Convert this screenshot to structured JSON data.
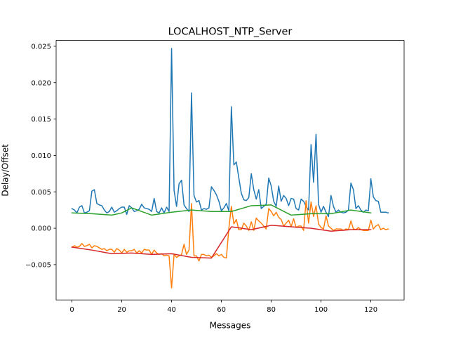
{
  "chart_data": {
    "type": "line",
    "title": "LOCALHOST_NTP_Server",
    "xlabel": "Messages",
    "ylabel": "Delay/Offset",
    "xlim": [
      -6.35,
      133.35
    ],
    "ylim": [
      -0.00985,
      0.0258
    ],
    "x_ticks": [
      0,
      20,
      40,
      60,
      80,
      100,
      120
    ],
    "x_tick_labels": [
      "0",
      "20",
      "40",
      "60",
      "80",
      "100",
      "120"
    ],
    "y_ticks": [
      -0.005,
      0.0,
      0.005,
      0.01,
      0.015,
      0.02,
      0.025
    ],
    "y_tick_labels": [
      "−0.005",
      "0.000",
      "0.005",
      "0.010",
      "0.015",
      "0.020",
      "0.025"
    ],
    "grid": false,
    "legend": null,
    "series": [
      {
        "color": "#1f77b4",
        "x": [
          0,
          1,
          2,
          3,
          4,
          5,
          6,
          7,
          8,
          9,
          10,
          11,
          12,
          13,
          14,
          15,
          16,
          17,
          18,
          19,
          20,
          21,
          22,
          23,
          24,
          25,
          26,
          27,
          28,
          29,
          30,
          31,
          32,
          33,
          34,
          35,
          36,
          37,
          38,
          39,
          40,
          41,
          42,
          43,
          44,
          45,
          46,
          47,
          48,
          49,
          50,
          51,
          52,
          53,
          54,
          55,
          56,
          57,
          58,
          59,
          60,
          61,
          62,
          63,
          64,
          65,
          66,
          67,
          68,
          69,
          70,
          71,
          72,
          73,
          74,
          75,
          76,
          77,
          78,
          79,
          80,
          81,
          82,
          83,
          84,
          85,
          86,
          87,
          88,
          89,
          90,
          91,
          92,
          93,
          94,
          95,
          96,
          97,
          98,
          99,
          100,
          101,
          102,
          103,
          104,
          105,
          106,
          107,
          108,
          109,
          110,
          111,
          112,
          113,
          114,
          115,
          116,
          117,
          118,
          119,
          120,
          121,
          122,
          123,
          124,
          125,
          126,
          127
        ],
        "y": [
          0.0027,
          0.0025,
          0.0021,
          0.0029,
          0.0031,
          0.0021,
          0.0022,
          0.0024,
          0.0051,
          0.0053,
          0.0034,
          0.0032,
          0.0031,
          0.0025,
          0.0021,
          0.0023,
          0.0029,
          0.0022,
          0.0024,
          0.0027,
          0.0029,
          0.0029,
          0.0019,
          0.0031,
          0.0028,
          0.0023,
          0.0024,
          0.0026,
          0.0033,
          0.0028,
          0.0027,
          0.0026,
          0.0023,
          0.0041,
          0.0023,
          0.0021,
          0.0028,
          0.0021,
          0.0029,
          0.0023,
          0.0247,
          0.0052,
          0.003,
          0.0061,
          0.0066,
          0.0032,
          0.0027,
          0.0023,
          0.0186,
          0.0045,
          0.0036,
          0.0038,
          0.0025,
          0.0027,
          0.0026,
          0.0028,
          0.0057,
          0.0052,
          0.0046,
          0.0037,
          0.0024,
          0.0028,
          0.0034,
          0.0024,
          0.0167,
          0.0087,
          0.0091,
          0.0069,
          0.0048,
          0.0039,
          0.0038,
          0.0042,
          0.0075,
          0.0053,
          0.004,
          0.0053,
          0.0027,
          0.003,
          0.0033,
          0.0069,
          0.0058,
          0.0037,
          0.003,
          0.0058,
          0.0037,
          0.0045,
          0.0041,
          0.0031,
          0.0041,
          0.004,
          0.0027,
          0.0025,
          0.004,
          0.0037,
          0.003,
          0.0025,
          0.0115,
          0.0063,
          0.0129,
          0.0033,
          0.0022,
          0.003,
          0.0022,
          0.0016,
          0.0045,
          0.003,
          0.0022,
          0.0025,
          0.0022,
          0.0021,
          0.0022,
          0.0025,
          0.0062,
          0.0053,
          0.0027,
          0.0031,
          0.0025,
          0.0022,
          0.0025,
          0.0024,
          0.0068,
          0.0043,
          0.0038,
          0.0037,
          0.0022,
          0.0022,
          0.0022,
          0.0021
        ]
      },
      {
        "color": "#ff7f0e",
        "x": [
          0,
          1,
          2,
          3,
          4,
          5,
          6,
          7,
          8,
          9,
          10,
          11,
          12,
          13,
          14,
          15,
          16,
          17,
          18,
          19,
          20,
          21,
          22,
          23,
          24,
          25,
          26,
          27,
          28,
          29,
          30,
          31,
          32,
          33,
          34,
          35,
          36,
          37,
          38,
          39,
          40,
          41,
          42,
          43,
          44,
          45,
          46,
          47,
          48,
          49,
          50,
          51,
          52,
          53,
          54,
          55,
          56,
          57,
          58,
          59,
          60,
          61,
          62,
          63,
          64,
          65,
          66,
          67,
          68,
          69,
          70,
          71,
          72,
          73,
          74,
          75,
          76,
          77,
          78,
          79,
          80,
          81,
          82,
          83,
          84,
          85,
          86,
          87,
          88,
          89,
          90,
          91,
          92,
          93,
          94,
          95,
          96,
          97,
          98,
          99,
          100,
          101,
          102,
          103,
          104,
          105,
          106,
          107,
          108,
          109,
          110,
          111,
          112,
          113,
          114,
          115,
          116,
          117,
          118,
          119,
          120,
          121,
          122,
          123,
          124,
          125,
          126,
          127
        ],
        "y": [
          -0.0026,
          -0.0024,
          -0.0026,
          -0.0025,
          -0.0021,
          -0.0025,
          -0.0024,
          -0.0022,
          -0.0027,
          -0.0024,
          -0.0025,
          -0.0027,
          -0.0029,
          -0.0028,
          -0.0031,
          -0.0029,
          -0.0029,
          -0.0033,
          -0.0028,
          -0.003,
          -0.0034,
          -0.0029,
          -0.0033,
          -0.0031,
          -0.0031,
          -0.0029,
          -0.0034,
          -0.0031,
          -0.0034,
          -0.0029,
          -0.003,
          -0.003,
          -0.0036,
          -0.003,
          -0.0034,
          -0.0036,
          -0.0035,
          -0.0038,
          -0.0037,
          -0.0038,
          -0.0082,
          -0.0036,
          -0.004,
          -0.0038,
          -0.0036,
          -0.0022,
          -0.0036,
          -0.003,
          0.0034,
          -0.0038,
          -0.0038,
          -0.0045,
          -0.0036,
          -0.0036,
          -0.0038,
          -0.0037,
          -0.004,
          -0.0038,
          -0.0035,
          -0.0038,
          -0.0036,
          -0.004,
          -0.0041,
          0.0,
          0.003,
          0.0006,
          0.0012,
          -0.0002,
          -0.0002,
          0.0007,
          0.0003,
          -0.0003,
          0.0009,
          -0.0003,
          0.0014,
          0.001,
          0.0007,
          0.0003,
          -0.0001,
          0.0027,
          0.0023,
          0.0017,
          0.0022,
          0.0015,
          0.0012,
          0.0003,
          0.0007,
          0.0011,
          0.0002,
          0.0013,
          0.0001,
          0.0003,
          0.0003,
          -0.0003,
          0.0038,
          0.0007,
          0.0036,
          0.0016,
          0.0031,
          0.0006,
          0.0001,
          -0.0001,
          0.0017,
          0.0003,
          0.0,
          -0.0003,
          -0.0001,
          -0.0001,
          -0.0001,
          -0.0003,
          -0.0001,
          -0.0002,
          0.001,
          -0.0001,
          -0.0002,
          0.0001,
          -0.0002,
          -0.0003,
          -0.0003,
          -0.0003,
          0.0011,
          -0.0001,
          0.0003,
          0.0005,
          -0.0002,
          0.0,
          -0.0002,
          -0.0001
        ]
      },
      {
        "color": "#2ca02c",
        "x": [
          0,
          8,
          16,
          20,
          24,
          32,
          40,
          48,
          56,
          64,
          72,
          80,
          88,
          96,
          104,
          112,
          120
        ],
        "y": [
          0.0021,
          0.002,
          0.0018,
          0.0021,
          0.0028,
          0.0018,
          0.0022,
          0.0025,
          0.0023,
          0.0023,
          0.0031,
          0.0032,
          0.0018,
          0.002,
          0.002,
          0.0025,
          0.0021
        ]
      },
      {
        "color": "#d62728",
        "x": [
          0,
          8,
          16,
          24,
          32,
          40,
          48,
          56,
          64,
          72,
          80,
          88,
          96,
          104,
          112,
          120
        ],
        "y": [
          -0.0026,
          -0.003,
          -0.0035,
          -0.0034,
          -0.0036,
          -0.0035,
          -0.004,
          -0.0041,
          0.0002,
          -0.0002,
          0.0004,
          0.0002,
          0.0,
          -0.0004,
          -0.0002,
          -0.0002
        ]
      }
    ]
  }
}
